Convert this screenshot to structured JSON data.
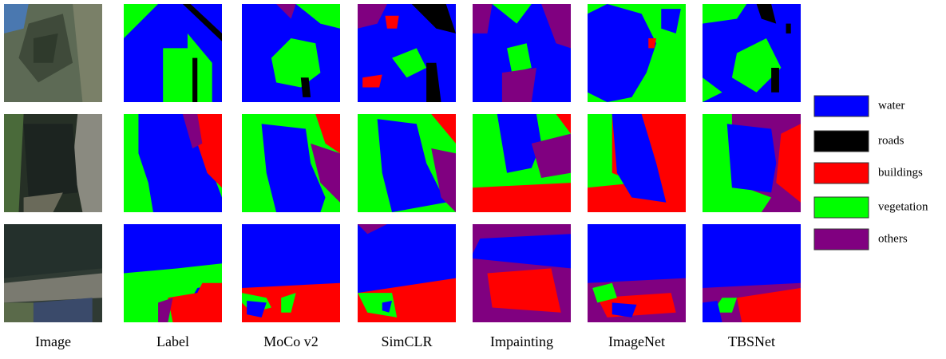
{
  "columns": [
    "Image",
    "Label",
    "MoCo v2",
    "SimCLR",
    "Impainting",
    "ImageNet",
    "TBSNet"
  ],
  "legend": [
    {
      "label": "water",
      "color": "#0000ff"
    },
    {
      "label": "roads",
      "color": "#000000"
    },
    {
      "label": "buildings",
      "color": "#ff0000"
    },
    {
      "label": "vegetation",
      "color": "#00ff00"
    },
    {
      "label": "others",
      "color": "#800080"
    }
  ]
}
